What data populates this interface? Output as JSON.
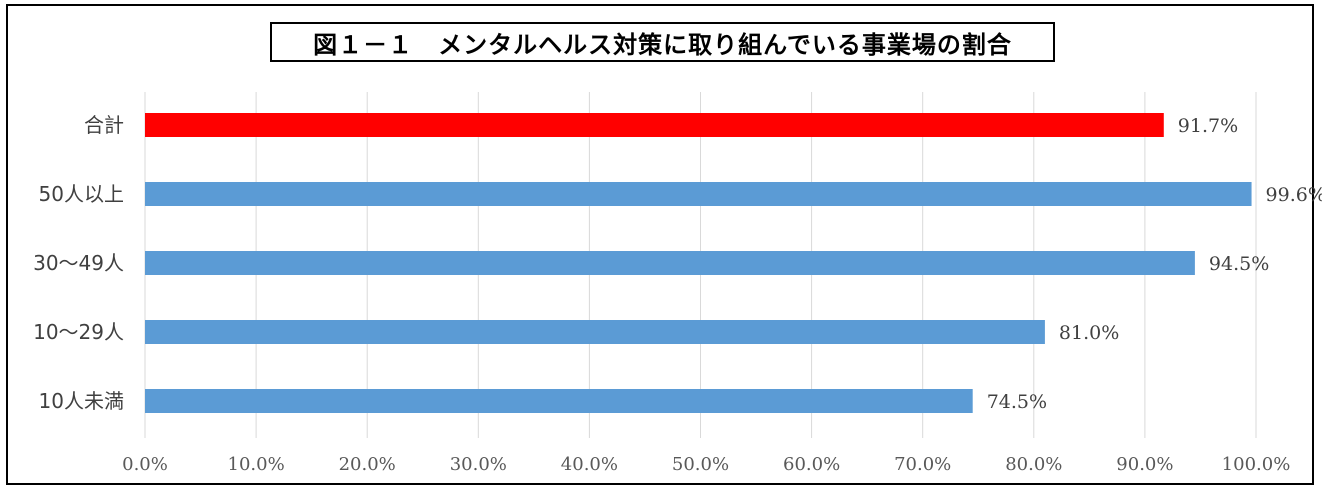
{
  "title": "図１－１　メンタルヘルス対策に取り組んでいる事業場の割合",
  "colors": {
    "total": "#ff0000",
    "bar": "#5b9bd5",
    "grid": "#d9d9d9"
  },
  "chart_data": {
    "type": "bar",
    "orientation": "horizontal",
    "categories": [
      "合計",
      "50人以上",
      "30～49人",
      "10～29人",
      "10人未満"
    ],
    "values": [
      91.7,
      99.6,
      94.5,
      81.0,
      74.5
    ],
    "data_labels": [
      "91.7%",
      "99.6%",
      "94.5%",
      "81.0%",
      "74.5%"
    ],
    "xlim": [
      0,
      100
    ],
    "x_ticks": [
      0,
      10,
      20,
      30,
      40,
      50,
      60,
      70,
      80,
      90,
      100
    ],
    "x_tick_labels": [
      "0.0%",
      "10.0%",
      "20.0%",
      "30.0%",
      "40.0%",
      "50.0%",
      "60.0%",
      "70.0%",
      "80.0%",
      "90.0%",
      "100.0%"
    ],
    "grid": true,
    "highlight": "合計"
  }
}
